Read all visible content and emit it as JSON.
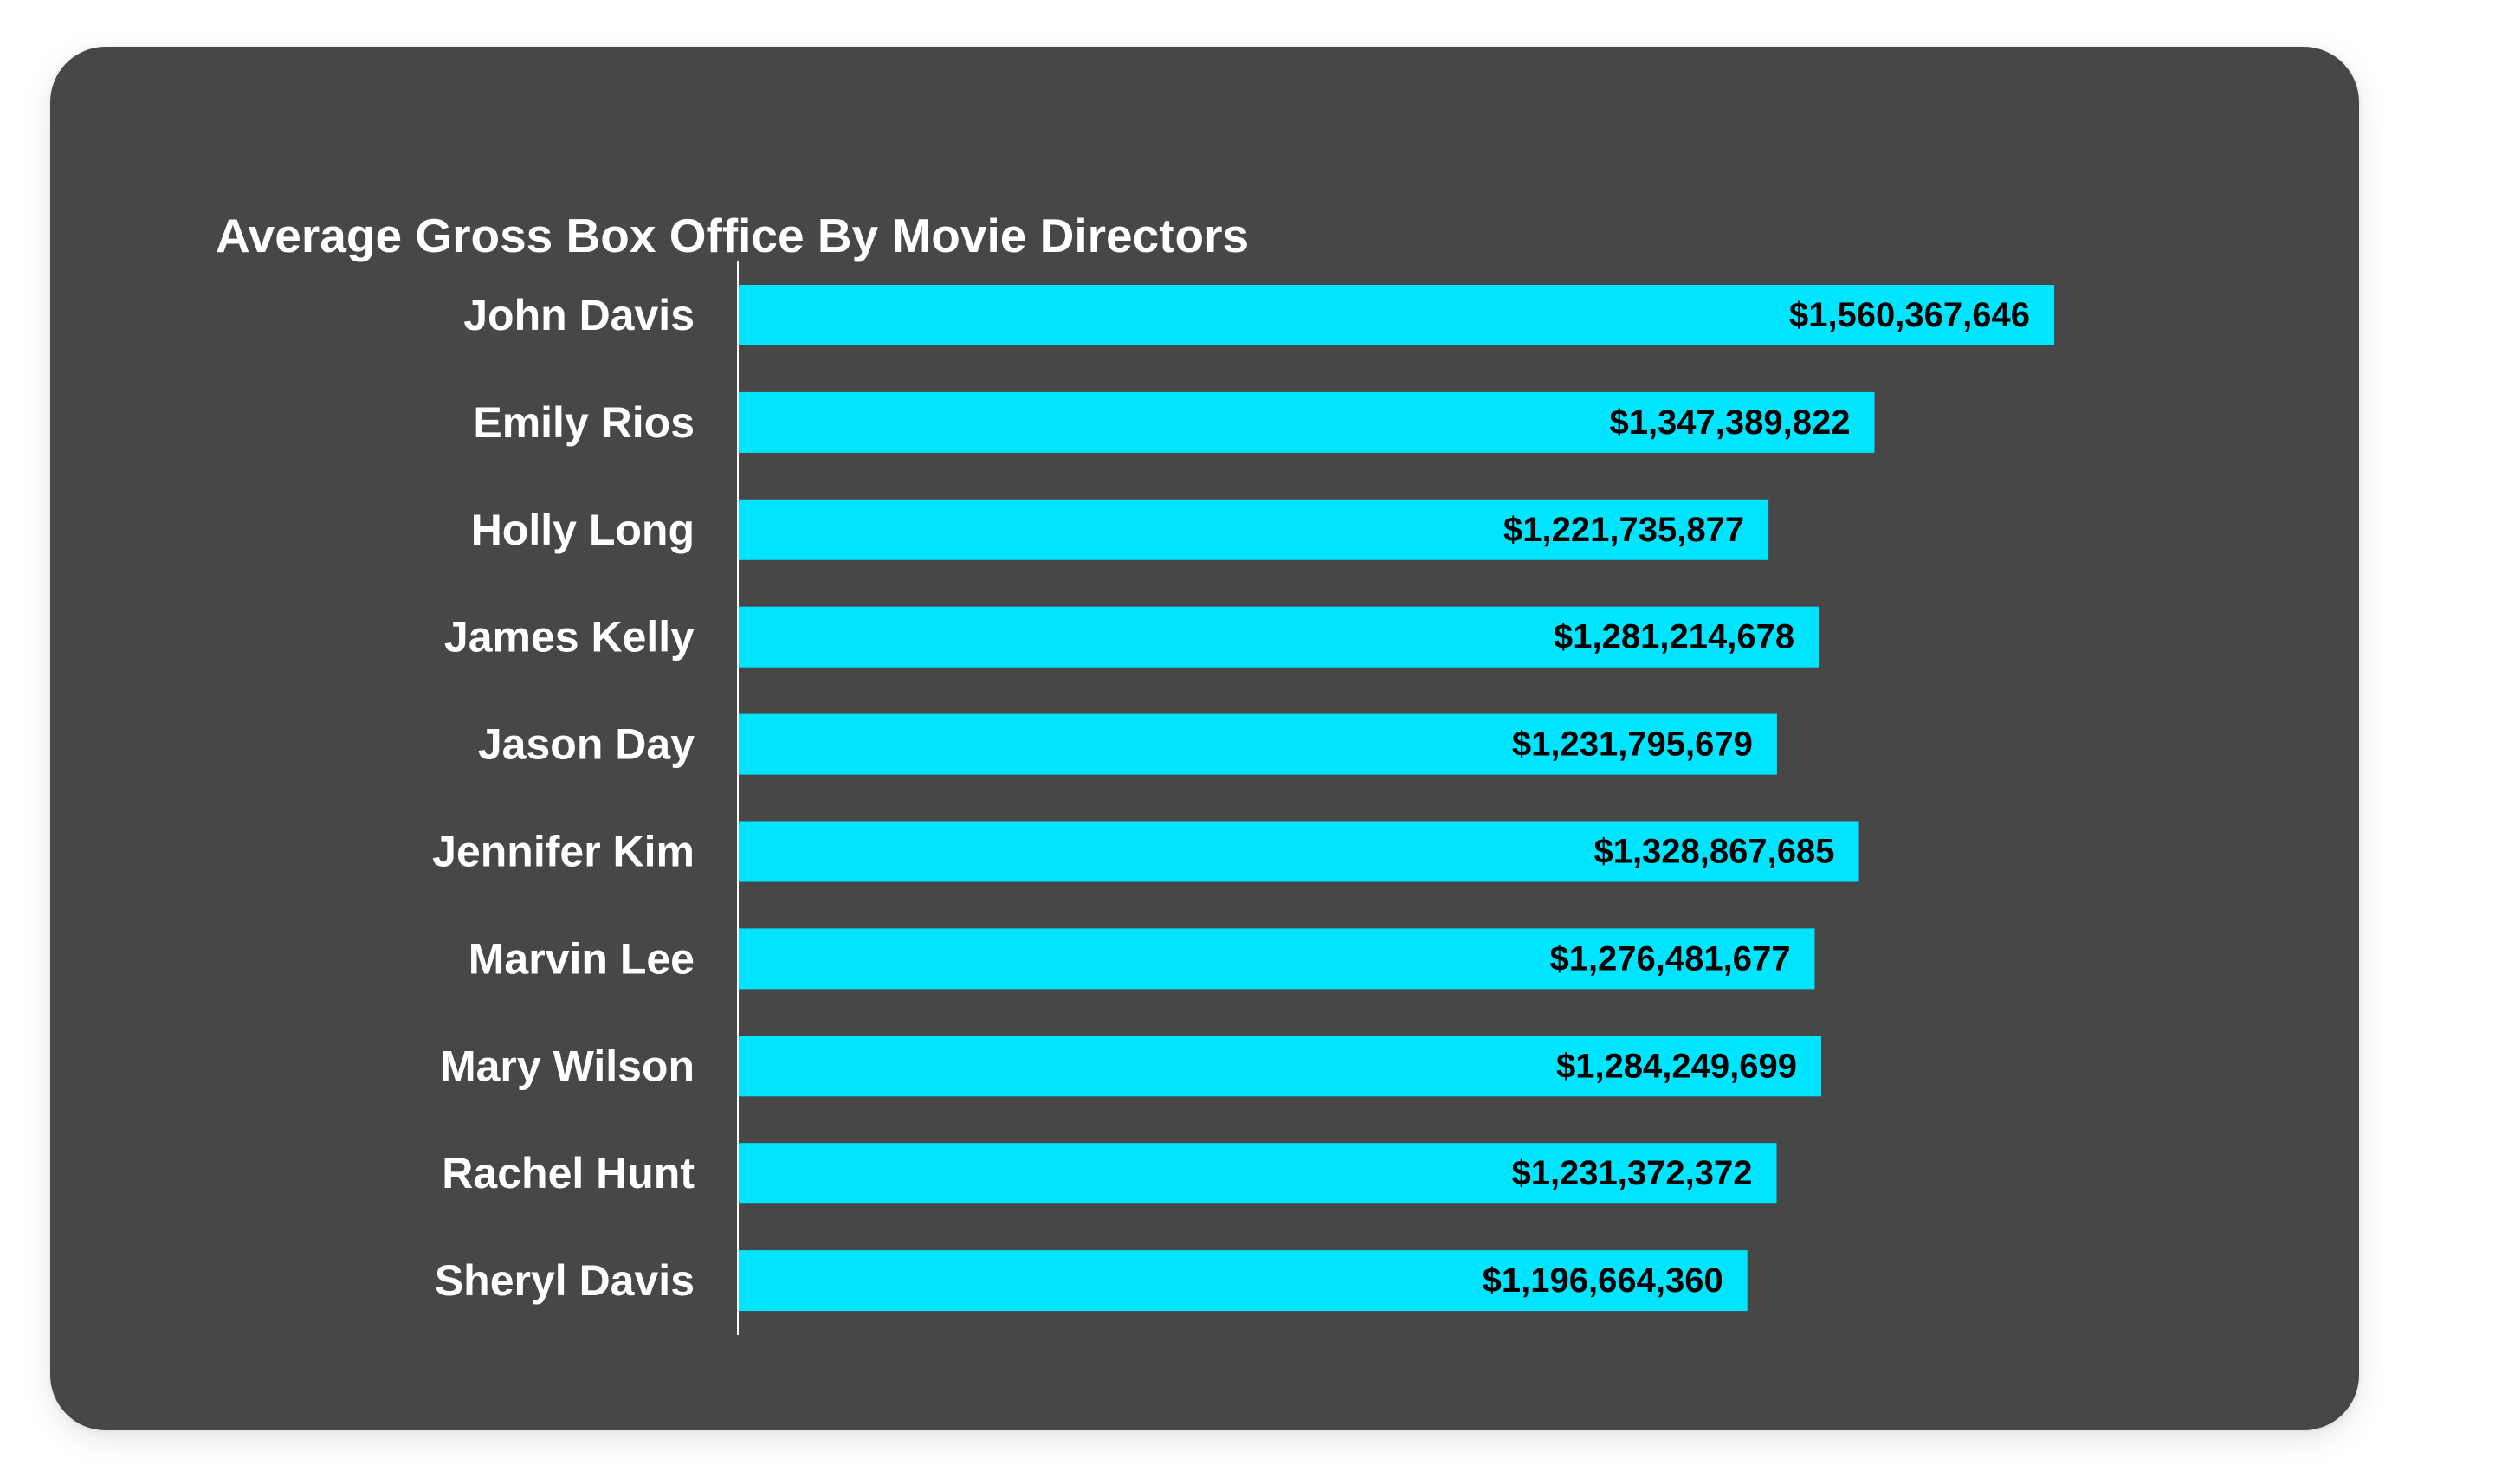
{
  "colors": {
    "background": "#ffffff",
    "card": "#474747",
    "bar": "#00e5ff",
    "axis": "#ffffff",
    "category_text": "#ffffff",
    "value_text": "#000000"
  },
  "chart_data": {
    "type": "bar",
    "orientation": "horizontal",
    "title": "Average Gross Box Office By Movie Directors",
    "xlabel": "",
    "ylabel": "",
    "categories": [
      "John Davis",
      "Emily Rios",
      "Holly Long",
      "James Kelly",
      "Jason Day",
      "Jennifer Kim",
      "Marvin Lee",
      "Mary Wilson",
      "Rachel Hunt",
      "Sheryl Davis"
    ],
    "values": [
      1560367646,
      1347389822,
      1221735877,
      1281214678,
      1231795679,
      1328867685,
      1276481677,
      1284249699,
      1231372372,
      1196664360
    ],
    "value_labels": [
      "$1,560,367,646",
      "$1,347,389,822",
      "$1,221,735,877",
      "$1,281,214,678",
      "$1,231,795,679",
      "$1,328,867,685",
      "$1,276,481,677",
      "$1,284,249,699",
      "$1,231,372,372",
      "$1,196,664,360"
    ],
    "xlim": [
      0,
      1560367646
    ],
    "grid": false,
    "legend": "none",
    "value_label_position": "inside-end"
  }
}
